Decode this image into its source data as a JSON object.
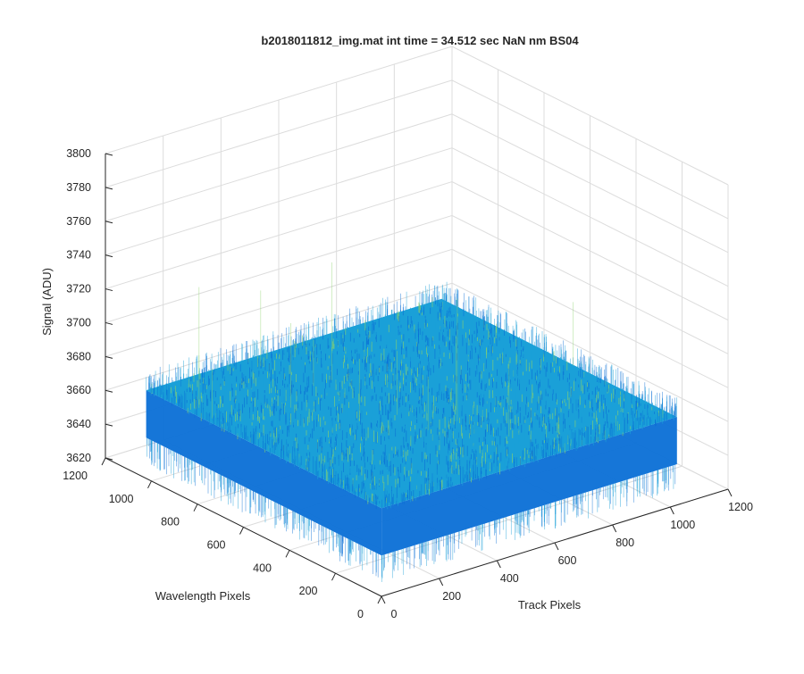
{
  "chart_data": {
    "type": "surface-3d",
    "title": "b2018011812_img.mat int time = 34.512 sec  NaN nm BS04",
    "xlabel": "Track Pixels",
    "ylabel": "Wavelength Pixels",
    "zlabel": "Signal (ADU)",
    "xlim": [
      0,
      1200
    ],
    "ylim": [
      0,
      1200
    ],
    "zlim": [
      3620,
      3800
    ],
    "x_ticks": [
      "0",
      "200",
      "400",
      "600",
      "800",
      "1000",
      "1200"
    ],
    "y_ticks": [
      "0",
      "200",
      "400",
      "600",
      "800",
      "1000",
      "1200"
    ],
    "z_ticks": [
      "3620",
      "3640",
      "3660",
      "3680",
      "3700",
      "3720",
      "3740",
      "3760",
      "3780",
      "3800"
    ],
    "surface": {
      "x_extent": [
        1,
        1024
      ],
      "y_extent": [
        1,
        1024
      ],
      "mean_signal": 3660,
      "signal_min": 3625,
      "signal_max": 3750,
      "colormap": "parula"
    },
    "grid": true,
    "box": false,
    "colors": {
      "axis": "#262626",
      "grid": "#dcdcdc",
      "surface_low": "#0a6fd6",
      "surface_mid": "#1aa0d8",
      "surface_high": "#8cd36a"
    }
  }
}
